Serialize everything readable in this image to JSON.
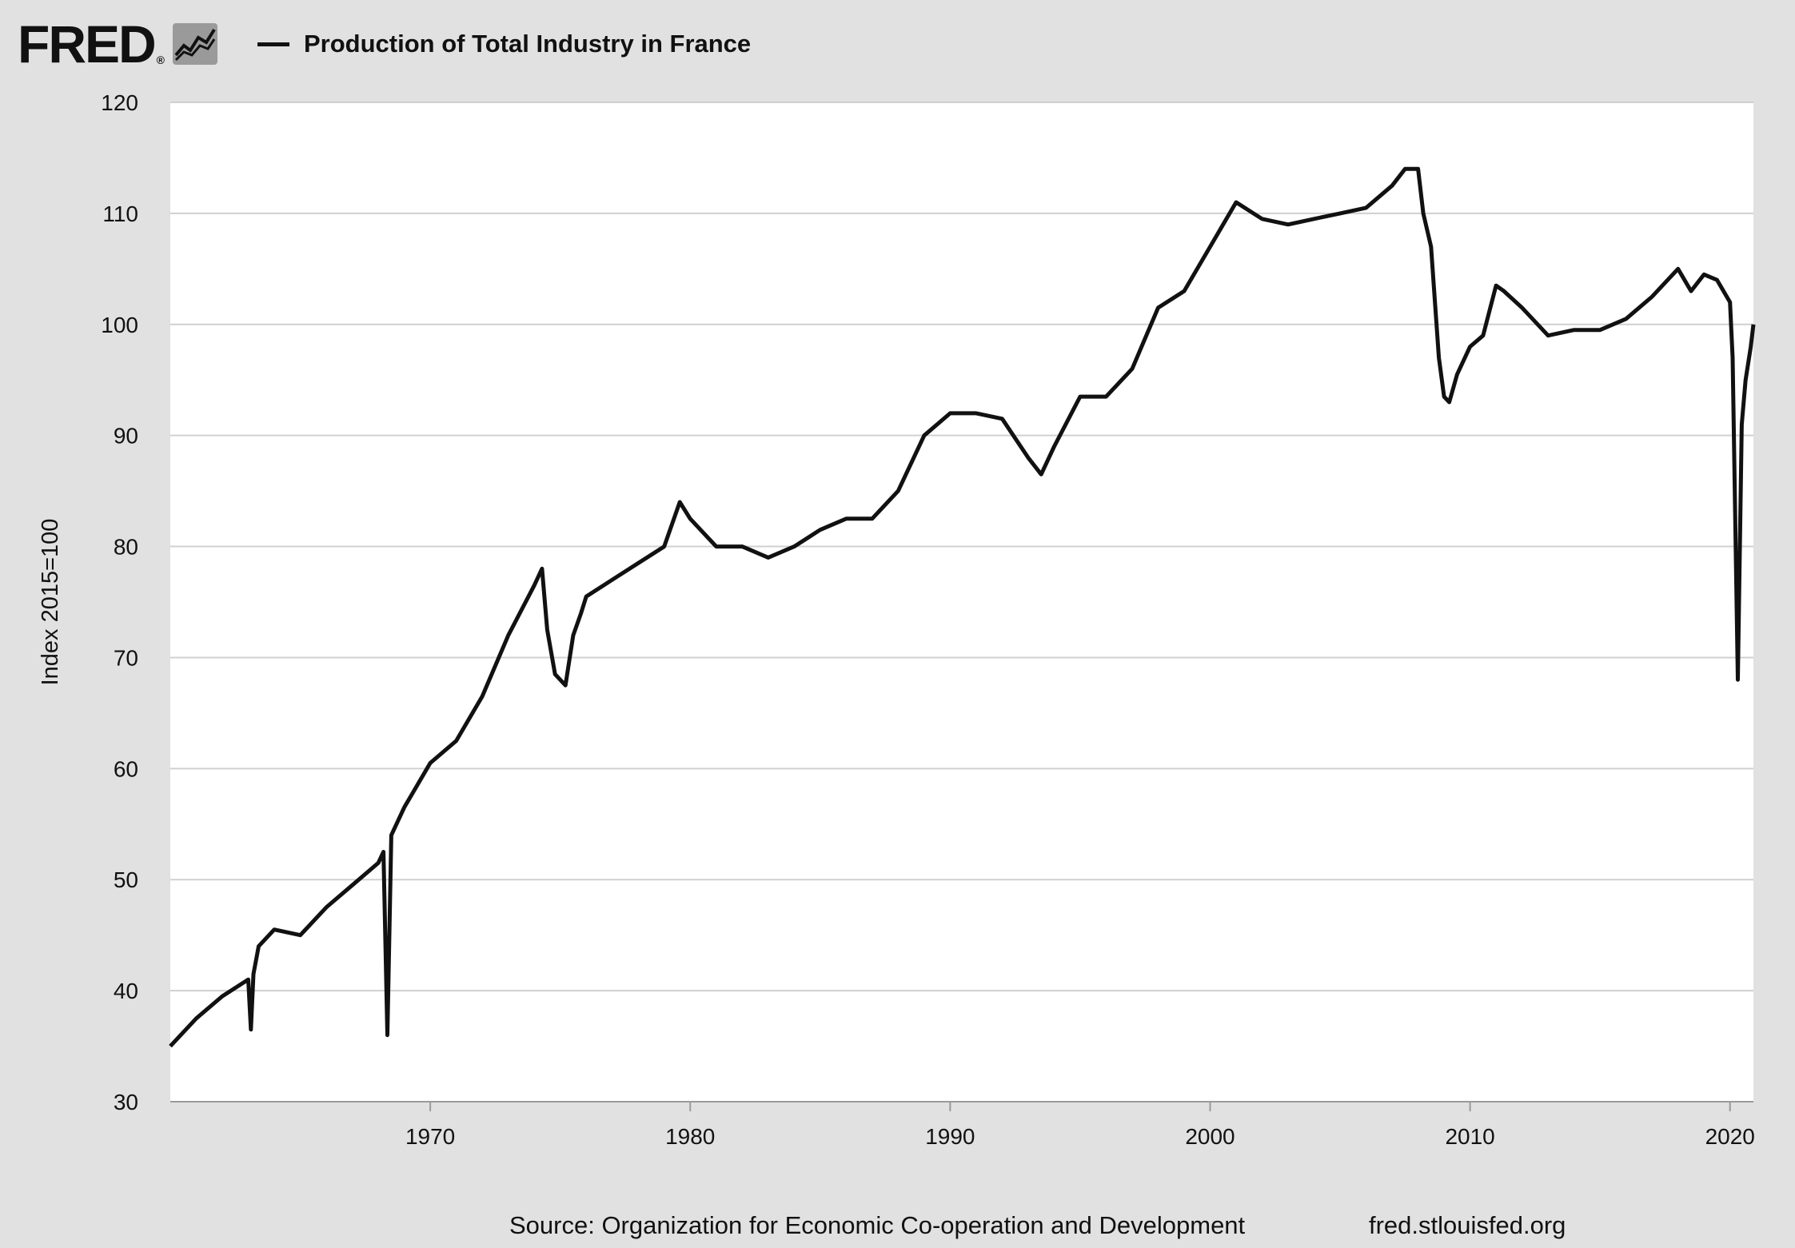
{
  "header": {
    "logo_text": "FRED",
    "logo_mark": "®",
    "logo_icon": "line-chart-icon",
    "legend_label": "Production of Total Industry in France"
  },
  "footer": {
    "source": "Source: Organization for Economic Co-operation and Development",
    "site": "fred.stlouisfed.org"
  },
  "colors": {
    "background": "#e1e1e1",
    "plot_background": "#ffffff",
    "gridline": "#d0d0d0",
    "series": "#111111"
  },
  "chart_data": {
    "type": "line",
    "title": "",
    "xlabel": "",
    "ylabel": "Index 2015=100",
    "xlim": [
      1960.0,
      2020.9
    ],
    "ylim": [
      30,
      120
    ],
    "x_ticks": [
      1970,
      1980,
      1990,
      2000,
      2010,
      2020
    ],
    "y_ticks": [
      30,
      40,
      50,
      60,
      70,
      80,
      90,
      100,
      110,
      120
    ],
    "grid": "horizontal",
    "legend": "top-left",
    "series": [
      {
        "name": "Production of Total Industry in France",
        "x": [
          1960.0,
          1961.0,
          1962.0,
          1963.0,
          1963.1,
          1963.2,
          1963.4,
          1964.0,
          1965.0,
          1966.0,
          1967.0,
          1968.0,
          1968.2,
          1968.35,
          1968.5,
          1969.0,
          1970.0,
          1971.0,
          1972.0,
          1973.0,
          1974.0,
          1974.3,
          1974.5,
          1974.8,
          1975.2,
          1975.5,
          1975.8,
          1976.0,
          1977.0,
          1978.0,
          1979.0,
          1979.6,
          1980.0,
          1981.0,
          1982.0,
          1983.0,
          1984.0,
          1985.0,
          1986.0,
          1987.0,
          1988.0,
          1989.0,
          1990.0,
          1991.0,
          1992.0,
          1993.0,
          1993.5,
          1994.0,
          1995.0,
          1996.0,
          1997.0,
          1998.0,
          1999.0,
          2000.0,
          2001.0,
          2002.0,
          2003.0,
          2004.0,
          2005.0,
          2006.0,
          2007.0,
          2007.5,
          2008.0,
          2008.2,
          2008.5,
          2008.8,
          2009.0,
          2009.2,
          2009.5,
          2010.0,
          2010.5,
          2011.0,
          2011.3,
          2012.0,
          2013.0,
          2014.0,
          2015.0,
          2016.0,
          2017.0,
          2018.0,
          2018.5,
          2019.0,
          2019.5,
          2020.0,
          2020.1,
          2020.3,
          2020.45,
          2020.6,
          2020.8,
          2020.9
        ],
        "values": [
          35.0,
          37.5,
          39.5,
          41.0,
          36.5,
          41.5,
          44.0,
          45.5,
          45.0,
          47.5,
          49.5,
          51.5,
          52.5,
          36.0,
          54.0,
          56.5,
          60.5,
          62.5,
          66.5,
          72.0,
          76.5,
          78.0,
          72.5,
          68.5,
          67.5,
          72.0,
          74.0,
          75.5,
          77.0,
          78.5,
          80.0,
          84.0,
          82.5,
          80.0,
          80.0,
          79.0,
          80.0,
          81.5,
          82.5,
          82.5,
          85.0,
          90.0,
          92.0,
          92.0,
          91.5,
          88.0,
          86.5,
          89.0,
          93.5,
          93.5,
          96.0,
          101.5,
          103.0,
          107.0,
          111.0,
          109.5,
          109.0,
          109.5,
          110.0,
          110.5,
          112.5,
          114.0,
          114.0,
          110.0,
          107.0,
          97.0,
          93.5,
          93.0,
          95.5,
          98.0,
          99.0,
          103.5,
          103.0,
          101.5,
          99.0,
          99.5,
          99.5,
          100.5,
          102.5,
          105.0,
          103.0,
          104.5,
          104.0,
          102.0,
          97.0,
          68.0,
          91.0,
          95.0,
          98.0,
          100.0
        ]
      }
    ]
  }
}
